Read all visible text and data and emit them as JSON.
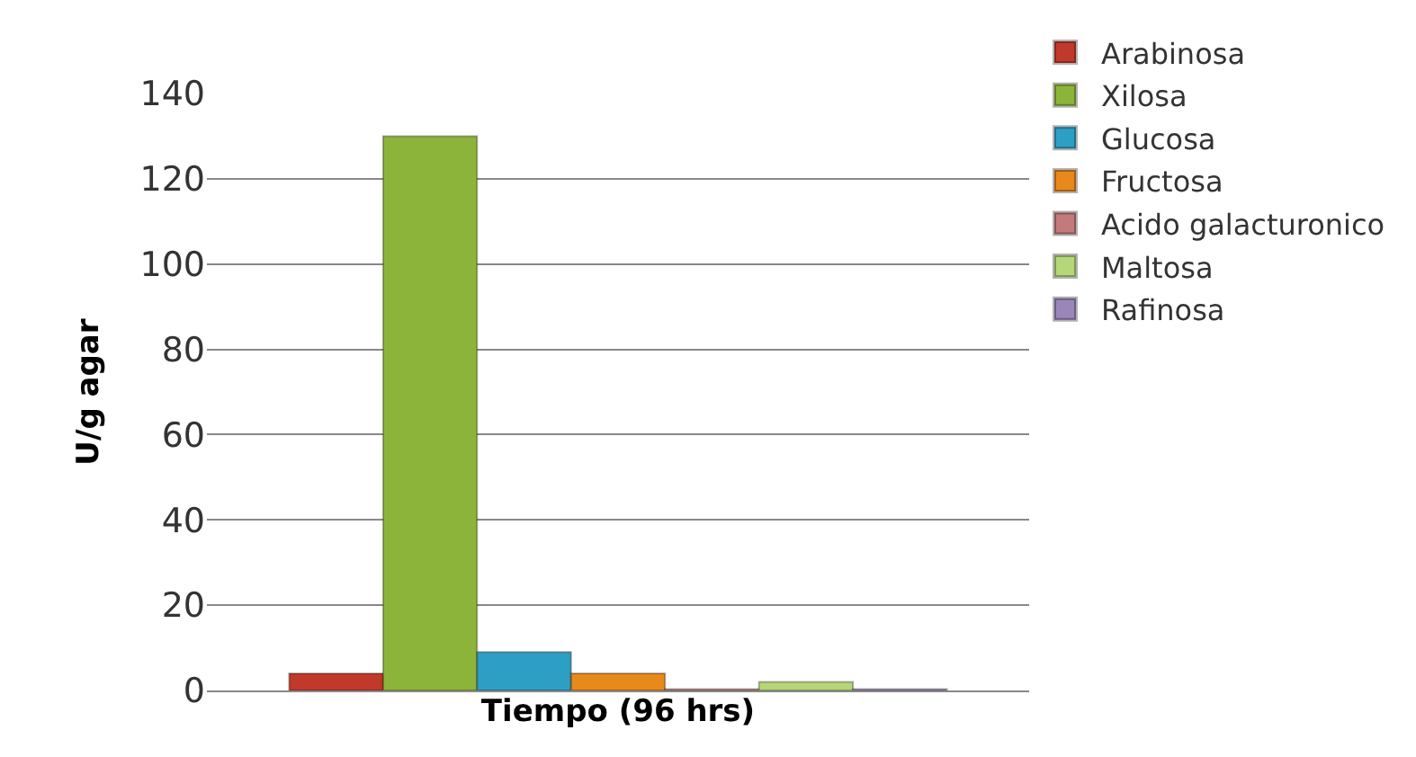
{
  "chart_data": {
    "type": "bar",
    "xlabel": "Tiempo (96 hrs)",
    "ylabel": "U/g agar",
    "categories": [
      null
    ],
    "series": [
      {
        "name": "Arabinosa",
        "color": "#c0392b",
        "values": [
          4
        ]
      },
      {
        "name": "Xilosa",
        "color": "#8db43a",
        "values": [
          130
        ]
      },
      {
        "name": "Glucosa",
        "color": "#2e9fc4",
        "values": [
          9
        ]
      },
      {
        "name": "Fructosa",
        "color": "#e8891c",
        "values": [
          4
        ]
      },
      {
        "name": "Acido galacturonico",
        "color": "#c27a7a",
        "values": [
          0.3
        ]
      },
      {
        "name": "Maltosa",
        "color": "#b5d77a",
        "values": [
          2
        ]
      },
      {
        "name": "Rafinosa",
        "color": "#9a86b8",
        "values": [
          0.3
        ]
      }
    ],
    "ylim": [
      0,
      140
    ],
    "yticks": [
      0,
      20,
      40,
      60,
      80,
      100,
      120,
      140
    ],
    "grid": "y",
    "legend": "right"
  }
}
